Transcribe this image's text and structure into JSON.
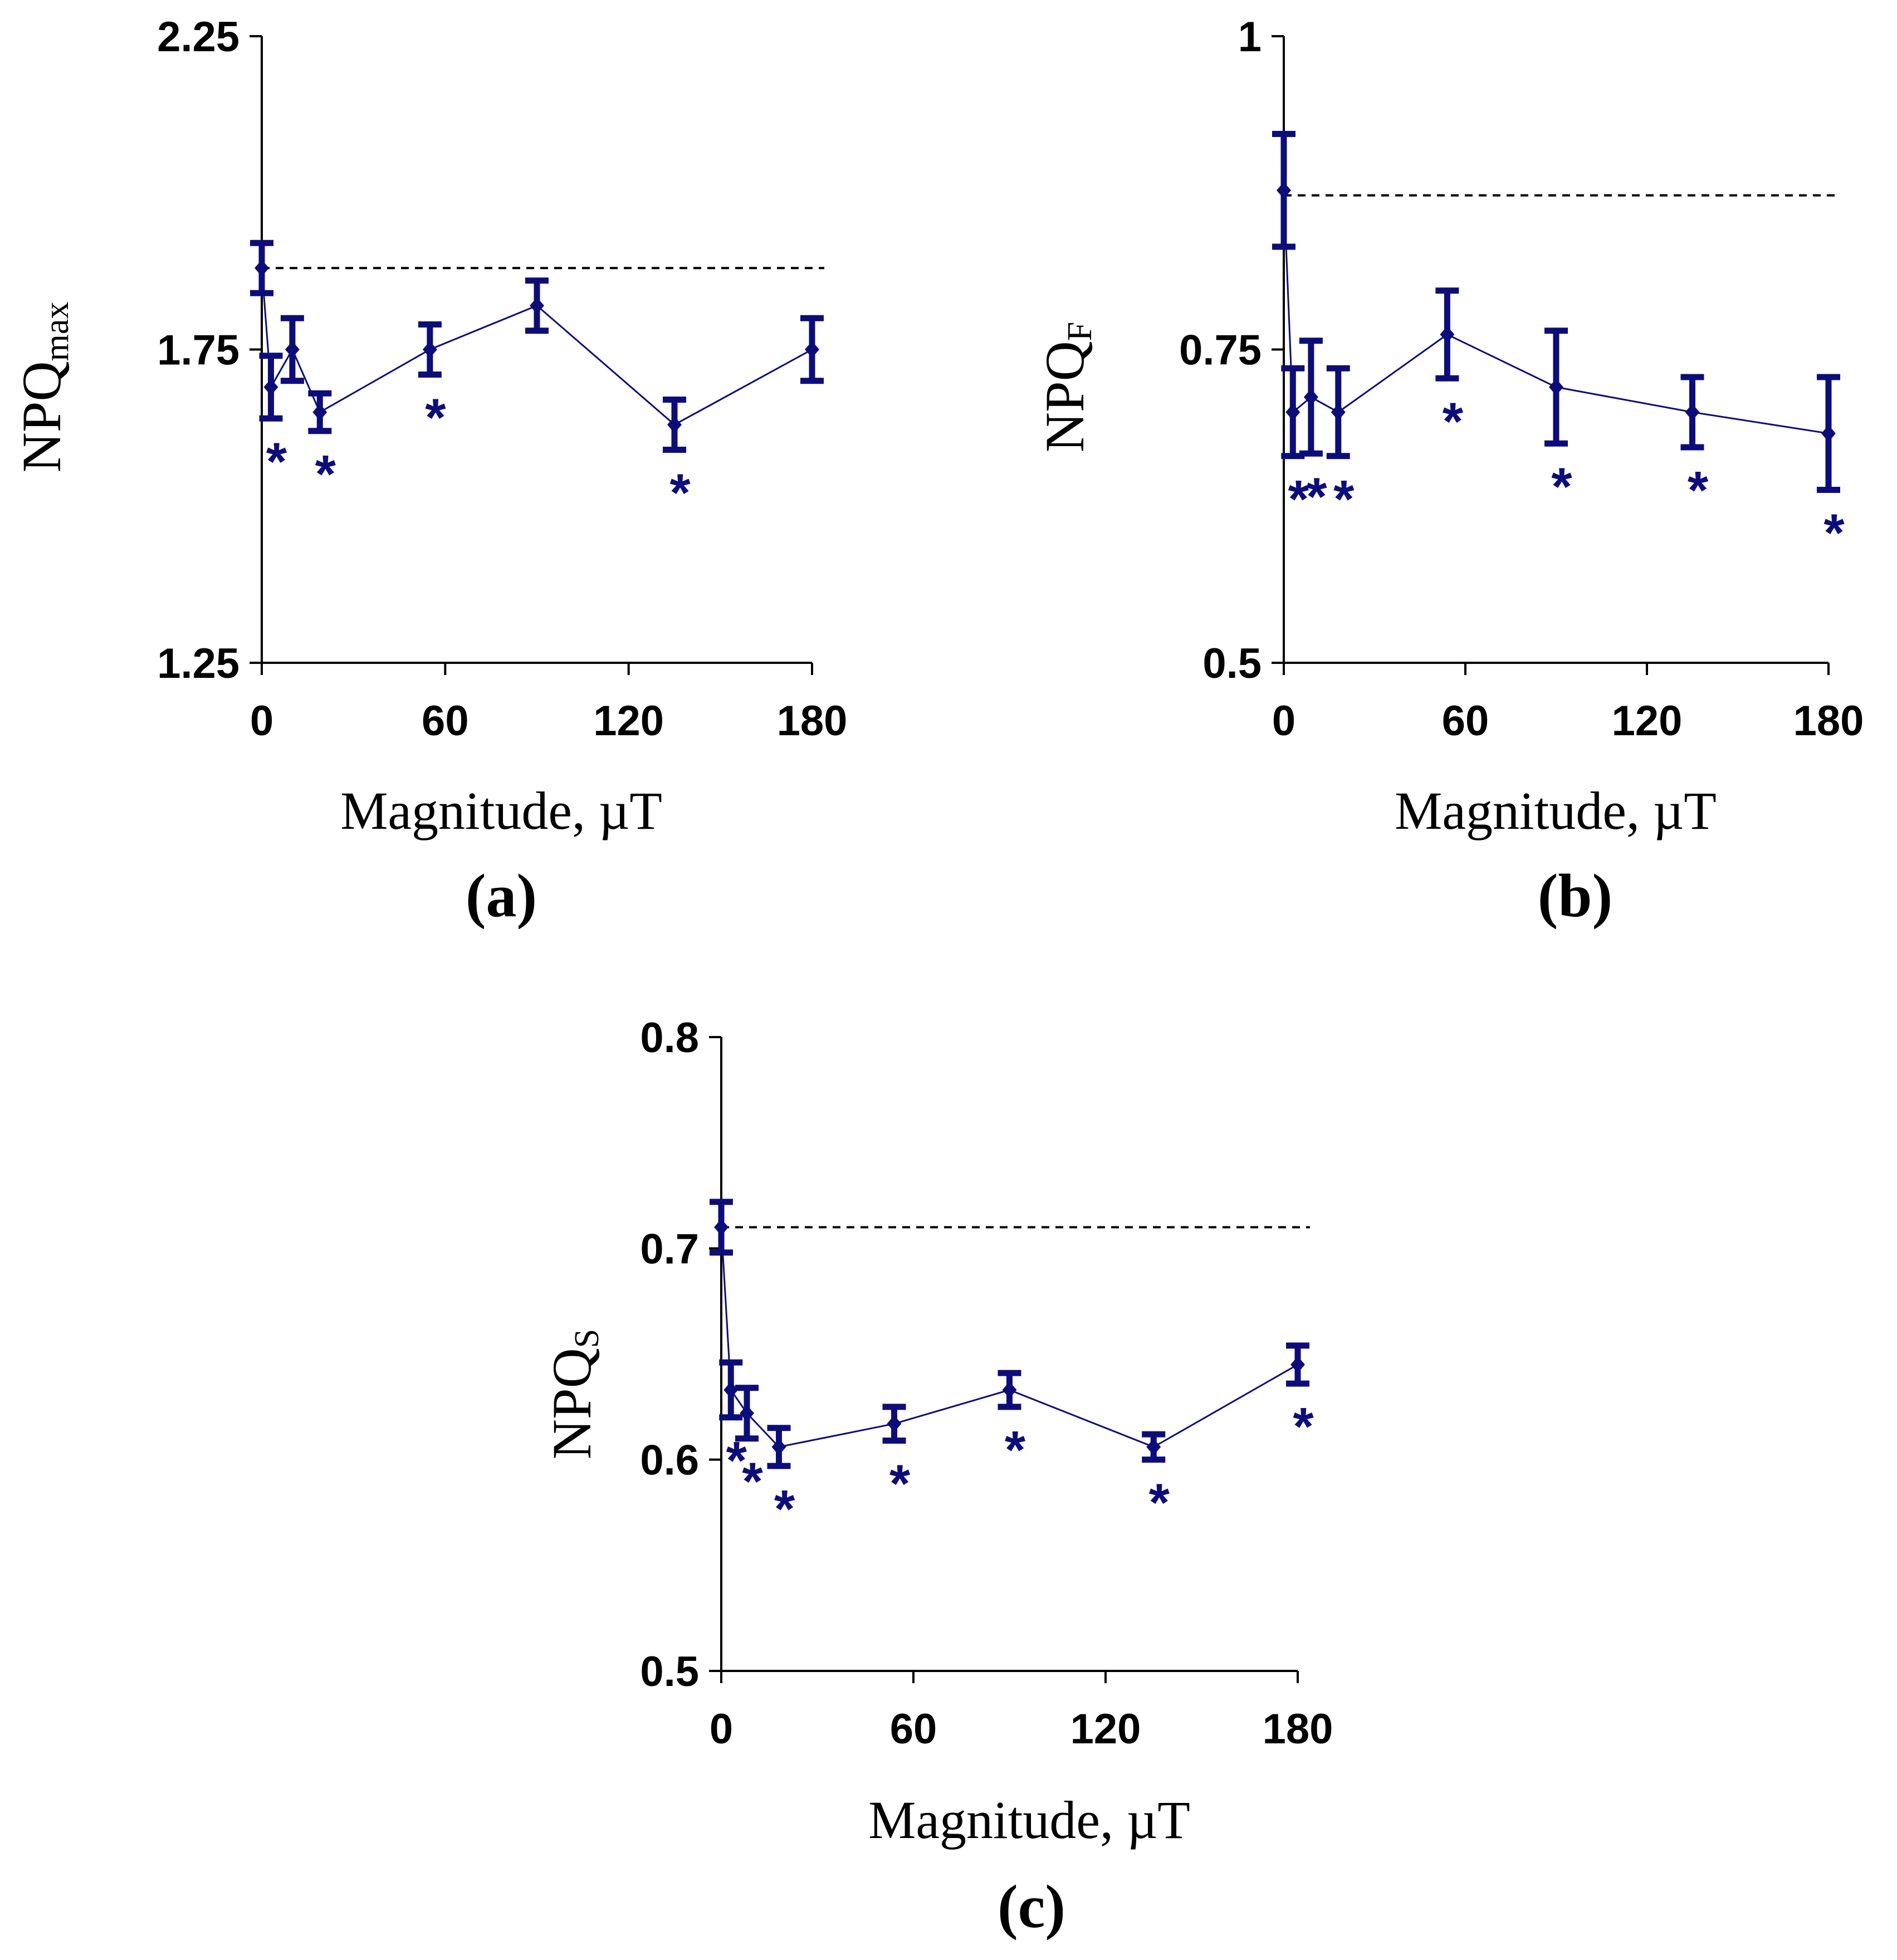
{
  "colors": {
    "series": "#0d0d7a",
    "axis": "#000000",
    "reference": "#000000"
  },
  "chart_data": [
    {
      "panel": "(a)",
      "type": "line",
      "xlabel": "Magnitude, µT",
      "ylabel_main": "NPQ",
      "ylabel_sub": "max",
      "xlim": [
        0,
        180
      ],
      "ylim": [
        1.25,
        2.25
      ],
      "xticks": [
        "0",
        "60",
        "120",
        "180"
      ],
      "yticks": [
        "1.25",
        "1.75",
        "2.25"
      ],
      "reference_line": 1.88,
      "series": [
        {
          "name": "NPQmax",
          "marker": "diamond",
          "points": [
            {
              "x": 0,
              "y": 1.88,
              "err": 0.04,
              "sig": false,
              "star": ""
            },
            {
              "x": 3,
              "y": 1.69,
              "err": 0.05,
              "sig": true,
              "star": "*"
            },
            {
              "x": 10,
              "y": 1.75,
              "err": 0.05,
              "sig": false,
              "star": ""
            },
            {
              "x": 19,
              "y": 1.65,
              "err": 0.03,
              "sig": true,
              "star": "*"
            },
            {
              "x": 55,
              "y": 1.75,
              "err": 0.04,
              "sig": true,
              "star": "*"
            },
            {
              "x": 90,
              "y": 1.82,
              "err": 0.04,
              "sig": false,
              "star": ""
            },
            {
              "x": 135,
              "y": 1.63,
              "err": 0.04,
              "sig": true,
              "star": "*"
            },
            {
              "x": 180,
              "y": 1.75,
              "err": 0.05,
              "sig": false,
              "star": ""
            }
          ]
        }
      ]
    },
    {
      "panel": "(b)",
      "type": "line",
      "xlabel": "Magnitude, µT",
      "ylabel_main": "NPQ",
      "ylabel_sub": "F",
      "xlim": [
        0,
        180
      ],
      "ylim": [
        0.5,
        1
      ],
      "xticks": [
        "0",
        "60",
        "120",
        "180"
      ],
      "yticks": [
        "0.5",
        "0.75",
        "1"
      ],
      "reference_line": 0.873,
      "series": [
        {
          "name": "NPQF",
          "marker": "diamond",
          "points": [
            {
              "x": 0,
              "y": 0.877,
              "err": 0.045,
              "sig": false,
              "star": ""
            },
            {
              "x": 3,
              "y": 0.7,
              "err": 0.035,
              "sig": true,
              "star": "*"
            },
            {
              "x": 9,
              "y": 0.712,
              "err": 0.045,
              "sig": true,
              "star": "*"
            },
            {
              "x": 18,
              "y": 0.7,
              "err": 0.035,
              "sig": true,
              "star": "*"
            },
            {
              "x": 54,
              "y": 0.762,
              "err": 0.035,
              "sig": true,
              "star": "*"
            },
            {
              "x": 90,
              "y": 0.72,
              "err": 0.045,
              "sig": true,
              "star": "*"
            },
            {
              "x": 135,
              "y": 0.7,
              "err": 0.028,
              "sig": true,
              "star": "*"
            },
            {
              "x": 180,
              "y": 0.683,
              "err": 0.045,
              "sig": true,
              "star": "*"
            }
          ]
        }
      ]
    },
    {
      "panel": "(c)",
      "type": "line",
      "xlabel": "Magnitude, µT",
      "ylabel_main": "NPQ",
      "ylabel_sub": "S",
      "xlim": [
        0,
        180
      ],
      "ylim": [
        0.5,
        0.8
      ],
      "xticks": [
        "0",
        "60",
        "120",
        "180"
      ],
      "yticks": [
        "0.5",
        "0.6",
        "0.7",
        "0.8"
      ],
      "reference_line": 0.71,
      "series": [
        {
          "name": "NPQS",
          "marker": "diamond",
          "points": [
            {
              "x": 0,
              "y": 0.71,
              "err": 0.012,
              "sig": false,
              "star": ""
            },
            {
              "x": 3,
              "y": 0.633,
              "err": 0.013,
              "sig": true,
              "star": "*"
            },
            {
              "x": 8,
              "y": 0.622,
              "err": 0.012,
              "sig": true,
              "star": "*"
            },
            {
              "x": 18,
              "y": 0.606,
              "err": 0.009,
              "sig": true,
              "star": "*"
            },
            {
              "x": 54,
              "y": 0.617,
              "err": 0.008,
              "sig": true,
              "star": "*"
            },
            {
              "x": 90,
              "y": 0.633,
              "err": 0.008,
              "sig": true,
              "star": "*"
            },
            {
              "x": 135,
              "y": 0.606,
              "err": 0.006,
              "sig": true,
              "star": "*"
            },
            {
              "x": 180,
              "y": 0.645,
              "err": 0.009,
              "sig": true,
              "star": "*"
            }
          ]
        }
      ]
    }
  ]
}
